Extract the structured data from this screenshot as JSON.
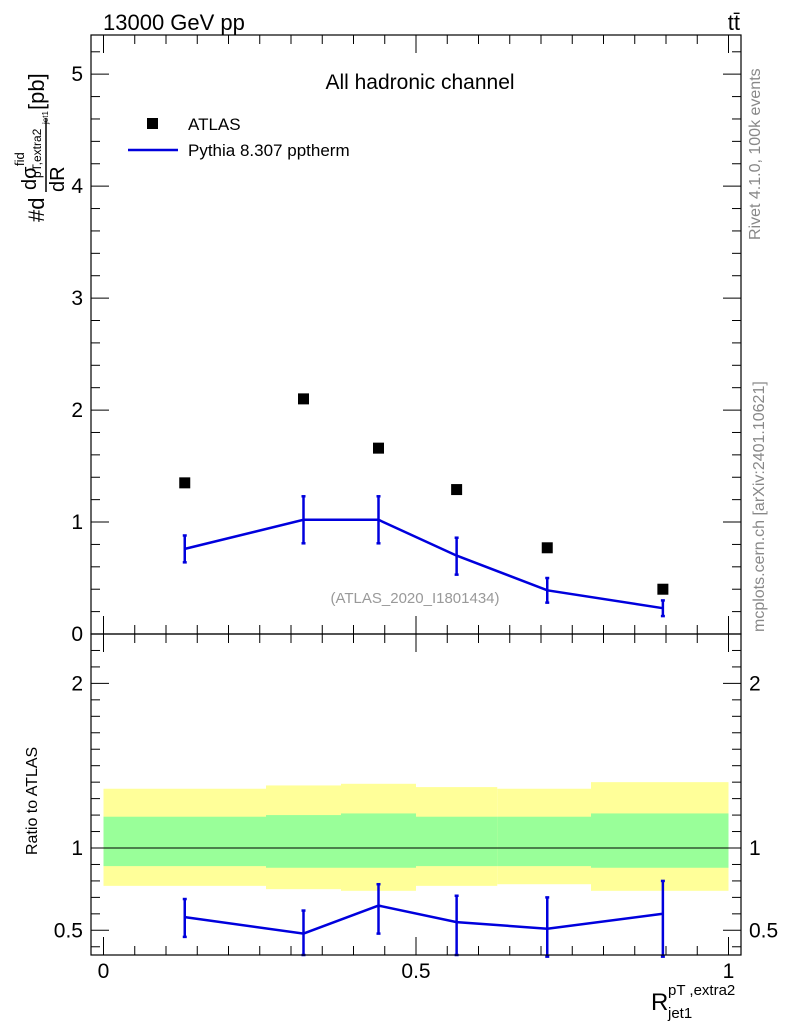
{
  "header": {
    "left_label": "13000 GeV pp",
    "right_label": "tt̄"
  },
  "side_labels": {
    "rivet": "Rivet 4.1.0,  100k events",
    "mcplots": "mcplots.cern.ch [arXiv:2401.10621]"
  },
  "chart_data": [
    {
      "type": "scatter",
      "title": "All hadronic channel",
      "watermark": "(ATLAS_2020_I1801434)",
      "ylabel": {
        "prefix": "#d",
        "numerator": "dσ",
        "num_sup": "fid",
        "num_sub_sup": "pT,extra2",
        "num_sub_sub": "jet1",
        "denominator": "dR",
        "suffix": "[pb]"
      },
      "xlim": [
        -0.02,
        1.02
      ],
      "ylim": [
        0,
        5.35
      ],
      "yticks": [
        "0",
        "1",
        "2",
        "3",
        "4",
        "5"
      ],
      "legend": {
        "position": "top-left",
        "entries": [
          "ATLAS",
          "Pythia 8.307 pptherm"
        ]
      },
      "series": [
        {
          "name": "ATLAS",
          "marker": "square",
          "color": "#000000",
          "x": [
            0.13,
            0.32,
            0.44,
            0.565,
            0.71,
            0.895
          ],
          "y": [
            1.35,
            2.1,
            1.66,
            1.29,
            0.77,
            0.4
          ]
        },
        {
          "name": "Pythia 8.307 pptherm",
          "marker": "line",
          "color": "#0000dd",
          "x": [
            0.13,
            0.32,
            0.44,
            0.565,
            0.71,
            0.895
          ],
          "y": [
            0.76,
            1.02,
            1.02,
            0.7,
            0.39,
            0.23
          ],
          "err_low": [
            0.12,
            0.21,
            0.21,
            0.17,
            0.11,
            0.07
          ],
          "err_high": [
            0.12,
            0.21,
            0.21,
            0.16,
            0.11,
            0.07
          ]
        }
      ]
    },
    {
      "type": "line",
      "ylabel": "Ratio to ATLAS",
      "xlabel": {
        "main": "R",
        "sup": "pT ,extra2",
        "sub": "jet1"
      },
      "xlim": [
        -0.02,
        1.02
      ],
      "ylim": [
        0.35,
        2.3
      ],
      "xticks": [
        "0",
        "0.5",
        "1"
      ],
      "yticks": [
        "0.5",
        "1",
        "2"
      ],
      "reference_line": 1.0,
      "bands": {
        "edges": [
          0.0,
          0.26,
          0.38,
          0.5,
          0.63,
          0.78,
          1.0
        ],
        "total_low": [
          0.77,
          0.75,
          0.74,
          0.77,
          0.78,
          0.74
        ],
        "total_high": [
          1.36,
          1.38,
          1.39,
          1.37,
          1.36,
          1.4
        ],
        "total_color": "#ffff99",
        "stat_low": [
          0.89,
          0.88,
          0.88,
          0.89,
          0.89,
          0.88
        ],
        "stat_high": [
          1.19,
          1.2,
          1.21,
          1.19,
          1.19,
          1.21
        ],
        "stat_color": "#99ff99"
      },
      "series": [
        {
          "name": "Pythia 8.307 pptherm",
          "color": "#0000dd",
          "x": [
            0.13,
            0.32,
            0.44,
            0.565,
            0.71,
            0.895
          ],
          "y": [
            0.58,
            0.48,
            0.65,
            0.55,
            0.51,
            0.6
          ],
          "err_low": [
            0.12,
            0.13,
            0.17,
            0.2,
            0.17,
            0.26
          ],
          "err_high": [
            0.11,
            0.14,
            0.13,
            0.16,
            0.19,
            0.2
          ]
        }
      ]
    }
  ]
}
